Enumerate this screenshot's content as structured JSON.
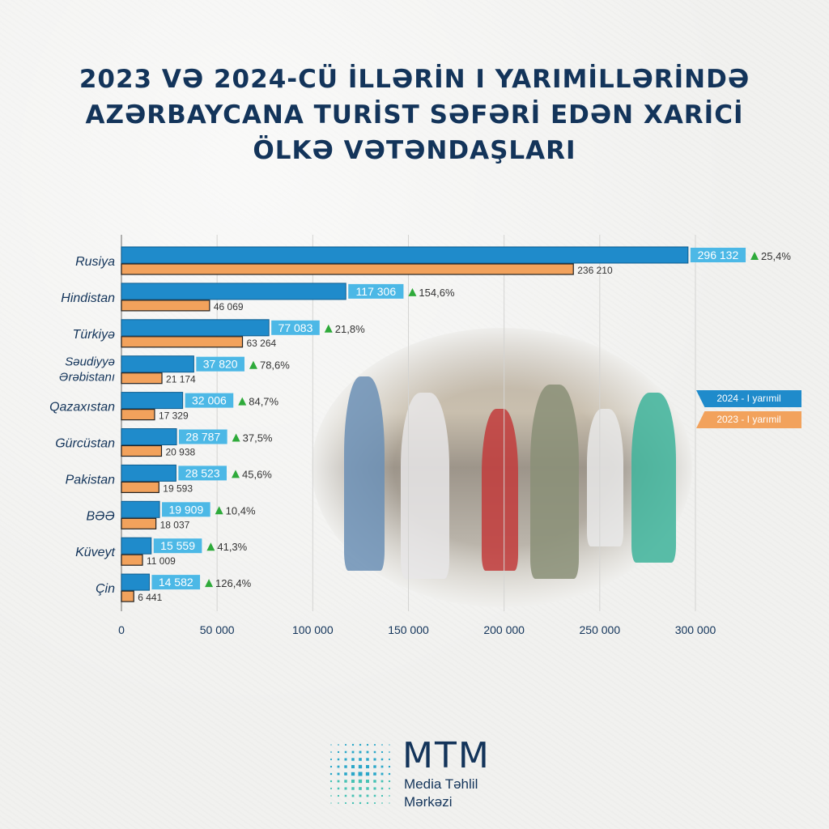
{
  "chart_data": {
    "type": "bar",
    "title_lines": [
      "2023 VƏ 2024-CÜ İLLƏRİN I YARIMİLLƏRİNDƏ",
      "AZƏRBAYCANA TURİST SƏFƏRİ EDƏN XARİCİ",
      "ÖLKƏ VƏTƏNDAŞLARI"
    ],
    "categories": [
      "Rusiya",
      "Hindistan",
      "Türkiyə",
      "Səudiyyə Ərəbistanı",
      "Qazaxıstan",
      "Gürcüstan",
      "Pakistan",
      "BƏƏ",
      "Küveyt",
      "Çin"
    ],
    "series": [
      {
        "name": "2024 - I yarımil",
        "values": [
          296132,
          117306,
          77083,
          37820,
          32006,
          28787,
          28523,
          19909,
          15559,
          14582
        ],
        "labels": [
          "296 132",
          "117 306",
          "77 083",
          "37 820",
          "32 006",
          "28 787",
          "28 523",
          "19 909",
          "15 559",
          "14 582"
        ],
        "color": "#1f8bcb",
        "label_color": "#4cb8e6"
      },
      {
        "name": "2023 - I yarımil",
        "values": [
          236210,
          46069,
          63264,
          21174,
          17329,
          20938,
          19593,
          18037,
          11009,
          6441
        ],
        "labels": [
          "236 210",
          "46 069",
          "63 264",
          "21 174",
          "17 329",
          "20 938",
          "19 593",
          "18 037",
          "11 009",
          "6 441"
        ],
        "color": "#f2a25c"
      }
    ],
    "growth": [
      "25,4%",
      "154,6%",
      "21,8%",
      "78,6%",
      "84,7%",
      "37,5%",
      "45,6%",
      "10,4%",
      "41,3%",
      "126,4%"
    ],
    "growth_color": "#2eaa3a",
    "xlim": [
      0,
      300000
    ],
    "xticks": [
      0,
      50000,
      100000,
      150000,
      200000,
      250000,
      300000
    ],
    "xtick_labels": [
      "0",
      "50 000",
      "100 000",
      "150 000",
      "200 000",
      "250 000",
      "300 000"
    ],
    "grid": true,
    "legend_position": "right"
  },
  "footer": {
    "brand": "MTM",
    "subtitle_line1": "Media Təhlil",
    "subtitle_line2": "Mərkəzi"
  }
}
